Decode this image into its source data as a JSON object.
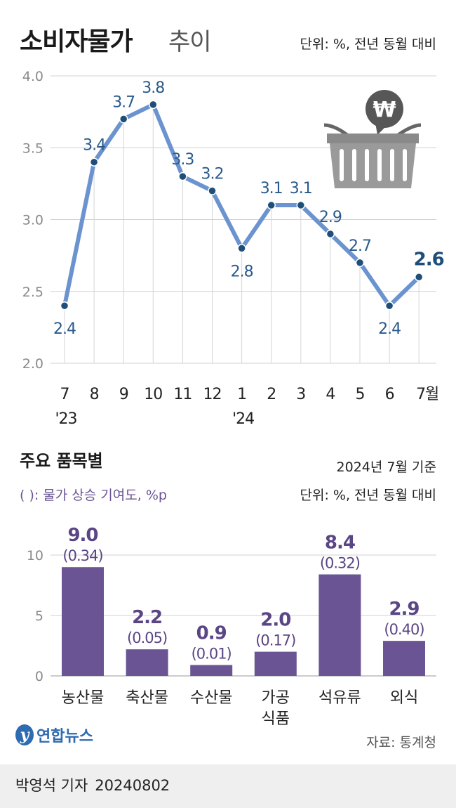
{
  "header": {
    "title": "소비자물가",
    "subtitle": "추이",
    "unit": "단위: %, 전년 동월 대비"
  },
  "chart_data": [
    {
      "type": "line",
      "title": "소비자물가 추이",
      "unit": "단위: %, 전년 동월 대비",
      "categories": [
        "7",
        "8",
        "9",
        "10",
        "11",
        "12",
        "1",
        "2",
        "3",
        "4",
        "5",
        "6",
        "7월"
      ],
      "year_labels": {
        "0": "'23",
        "6": "'24"
      },
      "series": [
        {
          "values": [
            2.4,
            3.4,
            3.7,
            3.8,
            3.3,
            3.2,
            2.8,
            3.1,
            3.1,
            2.9,
            2.7,
            2.4,
            2.6
          ]
        }
      ],
      "value_labels": [
        "2.4",
        "3.4",
        "3.7",
        "3.8",
        "3.3",
        "3.2",
        "2.8",
        "3.1",
        "3.1",
        "2.9",
        "2.7",
        "2.4",
        "2.6"
      ],
      "label_position": [
        "below",
        "above",
        "above",
        "above",
        "above",
        "above",
        "below",
        "above",
        "above",
        "above",
        "above",
        "below",
        "above"
      ],
      "ylim": [
        2.0,
        4.0
      ],
      "yticks": [
        "2.0",
        "2.5",
        "3.0",
        "3.5",
        "4.0"
      ],
      "grid": true,
      "colors": {
        "line": "#6a93cf",
        "marker": "#1f4e79",
        "label": "#2a5a8c",
        "emphasis": "#1f4e79"
      }
    },
    {
      "type": "bar",
      "title": "주요 품목별",
      "note": "2024년 7월 기준",
      "unit": "단위: %, 전년 동월 대비",
      "legend": "( ): 물가 상승 기여도, %p",
      "categories": [
        "농산물",
        "축산물",
        "수산물",
        "가공\n식품",
        "석유류",
        "외식"
      ],
      "values": [
        9.0,
        2.2,
        0.9,
        2.0,
        8.4,
        2.9
      ],
      "value_labels": [
        "9.0",
        "2.2",
        "0.9",
        "2.0",
        "8.4",
        "2.9"
      ],
      "contribution_labels": [
        "(0.34)",
        "(0.05)",
        "(0.01)",
        "(0.17)",
        "(0.32)",
        "(0.40)"
      ],
      "ylim": [
        0,
        10
      ],
      "yticks": [
        "0",
        "5",
        "10"
      ],
      "colors": {
        "bar": "#6a5494",
        "label": "#5a4585"
      }
    }
  ],
  "section2": {
    "title": "주요 품목별",
    "as_of": "2024년 7월 기준",
    "unit": "단위: %, 전년 동월 대비",
    "legend": "( ): 물가 상승 기여도, %p"
  },
  "footer": {
    "logo_text": "연합뉴스",
    "source": "자료: 통계청",
    "reporter": "박영석 기자",
    "date": "20240802"
  },
  "icons": {
    "basket": "shopping-basket-icon",
    "won": "won-currency-icon"
  }
}
